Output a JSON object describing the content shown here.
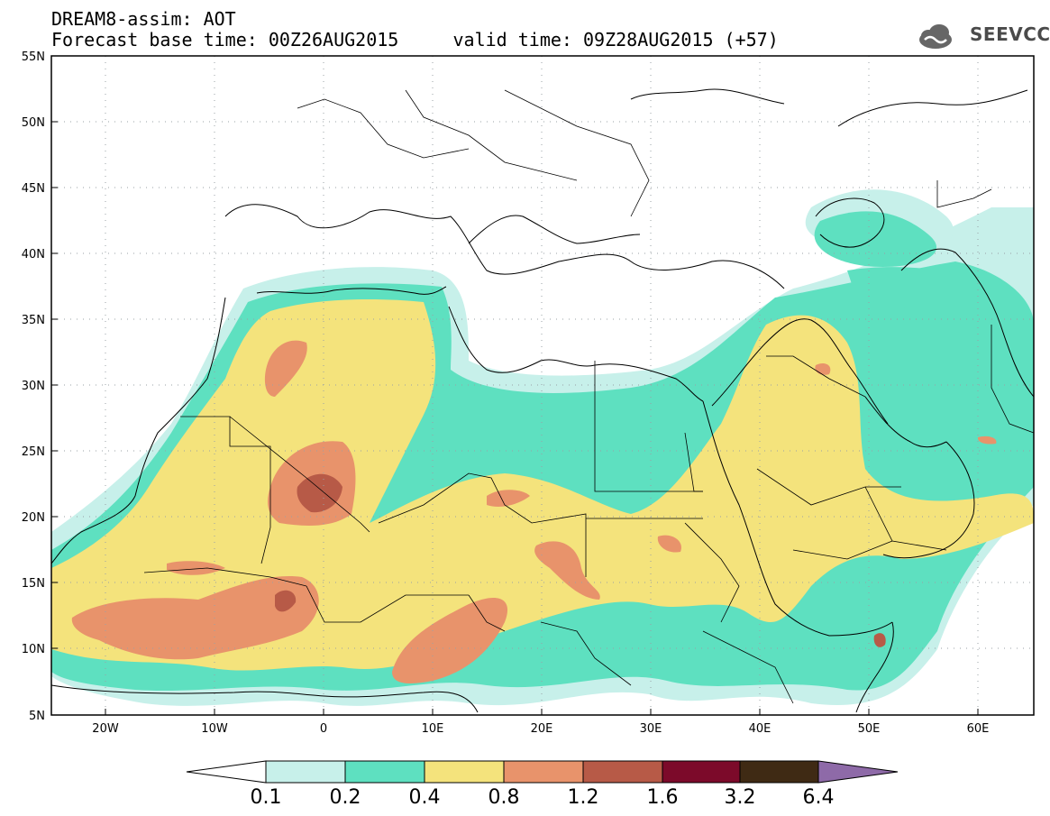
{
  "header": {
    "title_line1": "DREAM8-assim: AOT",
    "title_line2": "Forecast base time: 00Z26AUG2015     valid time: 09Z28AUG2015 (+57)"
  },
  "logo": {
    "text": "SEEVCCC",
    "icon": "cloud-icon"
  },
  "map": {
    "lat_ticks": [
      "55N",
      "50N",
      "45N",
      "40N",
      "35N",
      "30N",
      "25N",
      "20N",
      "15N",
      "10N",
      "5N"
    ],
    "lon_ticks": [
      "20W",
      "10W",
      "0",
      "10E",
      "20E",
      "30E",
      "40E",
      "50E",
      "60E"
    ],
    "lat_range": [
      5,
      55
    ],
    "lon_range": [
      -25,
      65
    ],
    "grid": "dotted"
  },
  "legend": {
    "labels": [
      "0.1",
      "0.2",
      "0.4",
      "0.8",
      "1.2",
      "1.6",
      "3.2",
      "6.4"
    ],
    "colors": [
      "#ffffff",
      "#c7f0ea",
      "#5ee0c0",
      "#f4e37c",
      "#e8936b",
      "#b75a47",
      "#7c0a2a",
      "#3f2a14",
      "#8e6aa8"
    ]
  }
}
